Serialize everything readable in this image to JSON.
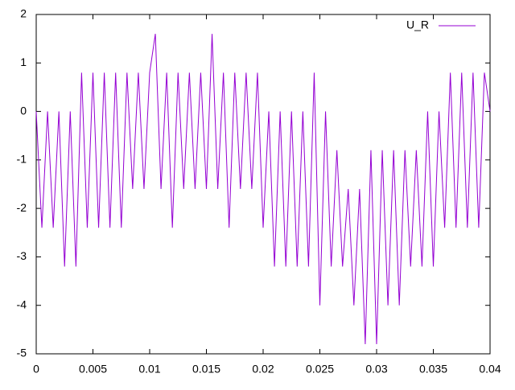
{
  "chart_data": {
    "type": "line",
    "x": [
      0,
      0.0005,
      0.001,
      0.0015,
      0.002,
      0.0025,
      0.003,
      0.0035,
      0.004,
      0.0045,
      0.005,
      0.0055,
      0.006,
      0.0065,
      0.007,
      0.0075,
      0.008,
      0.0085,
      0.009,
      0.0095,
      0.01,
      0.0105,
      0.011,
      0.0115,
      0.012,
      0.0125,
      0.013,
      0.0135,
      0.014,
      0.0145,
      0.015,
      0.0155,
      0.016,
      0.0165,
      0.017,
      0.0175,
      0.018,
      0.0185,
      0.019,
      0.0195,
      0.02,
      0.0205,
      0.021,
      0.0215,
      0.022,
      0.0225,
      0.023,
      0.0235,
      0.024,
      0.0245,
      0.025,
      0.0255,
      0.026,
      0.0265,
      0.027,
      0.0275,
      0.028,
      0.0285,
      0.029,
      0.0295,
      0.03,
      0.0305,
      0.031,
      0.0315,
      0.032,
      0.0325,
      0.033,
      0.0335,
      0.034,
      0.0345,
      0.035,
      0.0355,
      0.036,
      0.0365,
      0.037,
      0.0375,
      0.038,
      0.0385,
      0.039,
      0.0395,
      0.04
    ],
    "series": [
      {
        "name": "U_R",
        "color": "#9400d3",
        "values": [
          0,
          -2.4,
          0,
          -2.4,
          0,
          -3.2,
          0,
          -3.2,
          0.8,
          -2.4,
          0.8,
          -2.4,
          0.8,
          -2.4,
          0.8,
          -2.4,
          0.8,
          -1.6,
          0.8,
          -1.6,
          0.8,
          1.6,
          -1.6,
          0.8,
          -2.4,
          0.8,
          -1.6,
          0.8,
          -1.6,
          0.8,
          -1.6,
          1.6,
          -1.6,
          0.8,
          -2.4,
          0.8,
          -1.6,
          0.8,
          -1.6,
          0.8,
          -2.4,
          0,
          -3.2,
          0,
          -3.2,
          0,
          -3.2,
          0,
          -3.2,
          0.8,
          -4,
          0,
          -3.2,
          -0.8,
          -3.2,
          -1.6,
          -4,
          -1.6,
          -4.8,
          -0.8,
          -4.8,
          -0.8,
          -4,
          -0.8,
          -4,
          -0.8,
          -3.2,
          -0.8,
          -3.2,
          0,
          -3.2,
          0,
          -2.4,
          0.8,
          -2.4,
          0.8,
          -2.4,
          0.8,
          -2.4,
          0.8,
          0
        ]
      }
    ],
    "xlim": [
      0,
      0.04
    ],
    "xticks": [
      0,
      0.005,
      0.01,
      0.015,
      0.02,
      0.025,
      0.03,
      0.035,
      0.04
    ],
    "ylim": [
      -5,
      2
    ],
    "yticks": [
      -5,
      -4,
      -3,
      -2,
      -1,
      0,
      1,
      2
    ],
    "legend": "top-right"
  }
}
